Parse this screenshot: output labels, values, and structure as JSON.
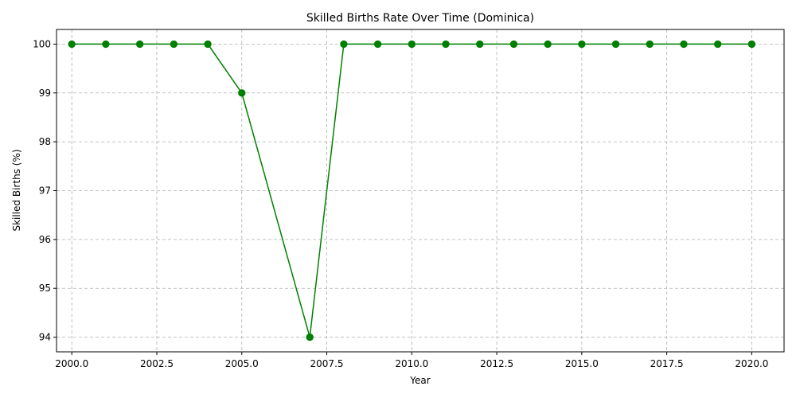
{
  "chart_data": {
    "type": "line",
    "title": "Skilled Births Rate Over Time (Dominica)",
    "xlabel": "Year",
    "ylabel": "Skilled Births (%)",
    "xlim": [
      1999.55,
      2020.95
    ],
    "ylim": [
      93.7,
      100.3
    ],
    "x_ticks": [
      2000.0,
      2002.5,
      2005.0,
      2007.5,
      2010.0,
      2012.5,
      2015.0,
      2017.5,
      2020.0
    ],
    "x_tick_labels": [
      "2000.0",
      "2002.5",
      "2005.0",
      "2007.5",
      "2010.0",
      "2012.5",
      "2015.0",
      "2017.5",
      "2020.0"
    ],
    "y_ticks": [
      94,
      95,
      96,
      97,
      98,
      99,
      100
    ],
    "y_tick_labels": [
      "94",
      "95",
      "96",
      "97",
      "98",
      "99",
      "100"
    ],
    "grid": true,
    "series": [
      {
        "color": "#008000",
        "marker": "circle",
        "x": [
          2000,
          2001,
          2002,
          2003,
          2004,
          2005,
          2007,
          2008,
          2009,
          2010,
          2011,
          2012,
          2013,
          2014,
          2015,
          2016,
          2017,
          2018,
          2019,
          2020
        ],
        "y": [
          100,
          100,
          100,
          100,
          100,
          99,
          94,
          100,
          100,
          100,
          100,
          100,
          100,
          100,
          100,
          100,
          100,
          100,
          100,
          100
        ]
      }
    ]
  }
}
